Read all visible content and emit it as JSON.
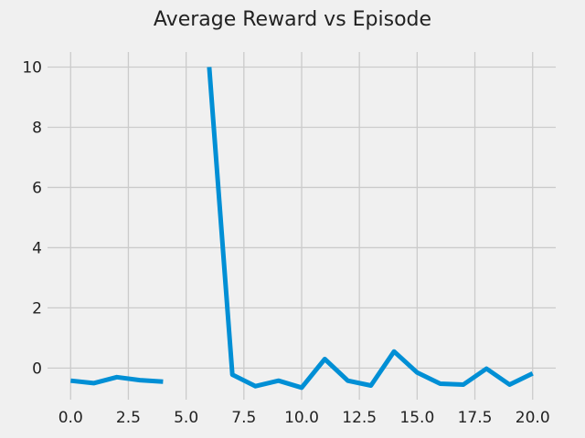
{
  "chart_data": {
    "type": "line",
    "title": "Average Reward vs Episode",
    "xlabel": "",
    "ylabel": "",
    "xlim": [
      -1.0,
      21.0
    ],
    "ylim": [
      -1.05,
      10.5
    ],
    "grid": true,
    "x_ticks": [
      0.0,
      2.5,
      5.0,
      7.5,
      10.0,
      12.5,
      15.0,
      17.5,
      20.0
    ],
    "x_tick_labels": [
      "0.0",
      "2.5",
      "5.0",
      "7.5",
      "10.0",
      "12.5",
      "15.0",
      "17.5",
      "20.0"
    ],
    "y_ticks": [
      0,
      2,
      4,
      6,
      8,
      10
    ],
    "y_tick_labels": [
      "0",
      "2",
      "4",
      "6",
      "8",
      "10"
    ],
    "series": [
      {
        "color": "#008fd5",
        "x": [
          0,
          1,
          2,
          3,
          4,
          5,
          6,
          7,
          8,
          9,
          10,
          11,
          12,
          13,
          14,
          15,
          16,
          17,
          18,
          19,
          20
        ],
        "y": [
          -0.42,
          -0.5,
          -0.3,
          -0.4,
          -0.45,
          null,
          10.0,
          -0.22,
          -0.6,
          -0.42,
          -0.65,
          0.3,
          -0.42,
          -0.58,
          0.55,
          -0.15,
          -0.52,
          -0.55,
          -0.02,
          -0.55,
          -0.18
        ]
      }
    ]
  }
}
